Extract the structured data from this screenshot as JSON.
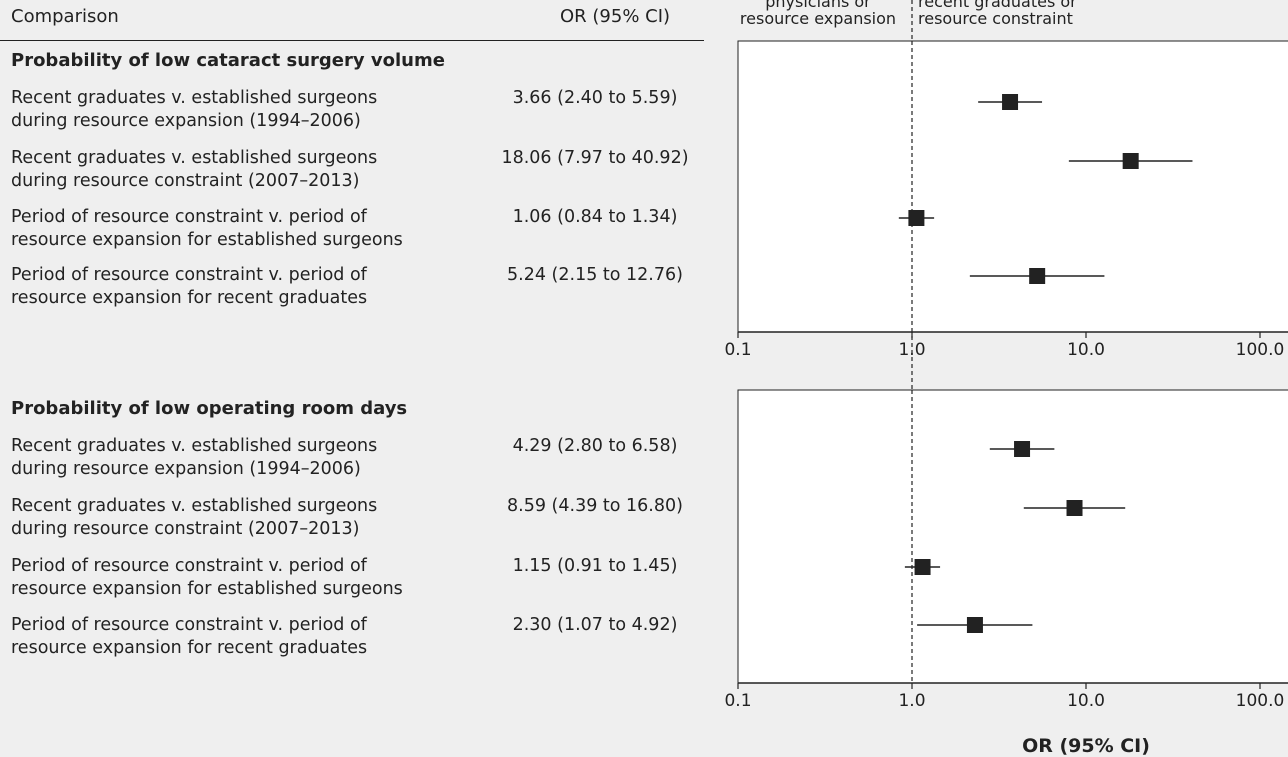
{
  "header": {
    "comparison_label": "Comparison",
    "or_label": "OR (95% CI)",
    "left_favors": [
      "physicians or",
      "resource expansion"
    ],
    "right_favors": [
      "recent graduates or",
      "resource constraint"
    ]
  },
  "colors": {
    "background": "#efefef",
    "panel": "#ffffff",
    "ink": "#222222"
  },
  "chart_data": {
    "type": "forest",
    "xscale": "log",
    "xlim": [
      0.1,
      100.0
    ],
    "xticks": [
      "0.1",
      "1.0",
      "10.0",
      "100.0"
    ],
    "xtick_values": [
      0.1,
      1,
      10,
      100
    ],
    "reference_line": 1.0,
    "xlabel": "OR (95% CI)",
    "panels": [
      {
        "title": "Probability of low cataract surgery volume",
        "rows": [
          {
            "label": [
              "Recent graduates v. established surgeons",
              "during resource expansion (1994–2006)"
            ],
            "or_text": "3.66 (2.40 to 5.59)",
            "or": 3.66,
            "lo": 2.4,
            "hi": 5.59
          },
          {
            "label": [
              "Recent graduates v. established surgeons",
              "during resource constraint (2007–2013)"
            ],
            "or_text": "18.06 (7.97 to 40.92)",
            "or": 18.06,
            "lo": 7.97,
            "hi": 40.92
          },
          {
            "label": [
              "Period of resource constraint v. period of",
              "resource expansion for established surgeons"
            ],
            "or_text": "1.06 (0.84 to 1.34)",
            "or": 1.06,
            "lo": 0.84,
            "hi": 1.34
          },
          {
            "label": [
              "Period of resource constraint v. period of",
              "resource expansion for recent graduates"
            ],
            "or_text": "5.24 (2.15 to 12.76)",
            "or": 5.24,
            "lo": 2.15,
            "hi": 12.76
          }
        ]
      },
      {
        "title": "Probability of low operating room days",
        "rows": [
          {
            "label": [
              "Recent graduates v. established surgeons",
              "during resource expansion (1994–2006)"
            ],
            "or_text": "4.29 (2.80 to 6.58)",
            "or": 4.29,
            "lo": 2.8,
            "hi": 6.58
          },
          {
            "label": [
              "Recent graduates v. established surgeons",
              "during resource constraint (2007–2013)"
            ],
            "or_text": "8.59 (4.39 to 16.80)",
            "or": 8.59,
            "lo": 4.39,
            "hi": 16.8
          },
          {
            "label": [
              "Period of resource constraint v. period of",
              "resource expansion for established surgeons"
            ],
            "or_text": "1.15 (0.91 to 1.45)",
            "or": 1.15,
            "lo": 0.91,
            "hi": 1.45
          },
          {
            "label": [
              "Period of resource constraint v. period of",
              "resource expansion for recent graduates"
            ],
            "or_text": "2.30 (1.07 to 4.92)",
            "or": 2.3,
            "lo": 1.07,
            "hi": 4.92
          }
        ]
      }
    ]
  }
}
